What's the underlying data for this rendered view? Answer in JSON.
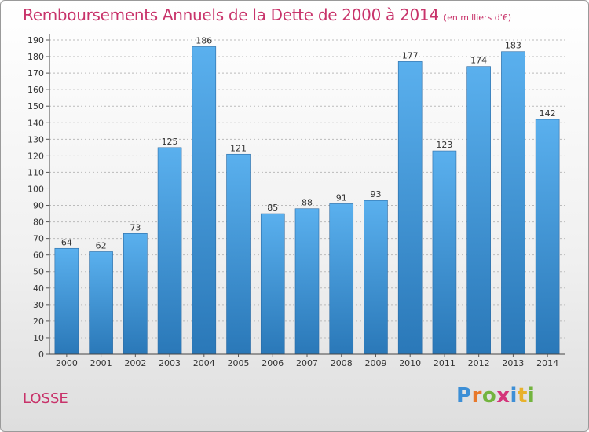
{
  "title": "Remboursements Annuels de la Dette de 2000 à 2014",
  "unit": "(en milliers d'€)",
  "commune": "LOSSE",
  "logo": {
    "letters": [
      "P",
      "r",
      "o",
      "x",
      "i",
      "t",
      "i"
    ],
    "colors": [
      "#3d8fd6",
      "#e8792b",
      "#73b43e",
      "#d4347a",
      "#3d8fd6",
      "#e8b12b",
      "#73b43e"
    ]
  },
  "colors": {
    "bar_top": "#5ab0ee",
    "bar_bottom": "#2a78b8",
    "title": "#c8336a",
    "grid": "#bbbbbb"
  },
  "chart_data": {
    "type": "bar",
    "categories": [
      "2000",
      "2001",
      "2002",
      "2003",
      "2004",
      "2005",
      "2006",
      "2007",
      "2008",
      "2009",
      "2010",
      "2011",
      "2012",
      "2013",
      "2014"
    ],
    "values": [
      64,
      62,
      73,
      125,
      186,
      121,
      85,
      88,
      91,
      93,
      177,
      123,
      174,
      183,
      142
    ],
    "ylim": [
      0,
      190
    ],
    "yticks": [
      0,
      10,
      20,
      30,
      40,
      50,
      60,
      70,
      80,
      90,
      100,
      110,
      120,
      130,
      140,
      150,
      160,
      170,
      180,
      190
    ],
    "grid": true,
    "xlabel": "",
    "ylabel": ""
  }
}
